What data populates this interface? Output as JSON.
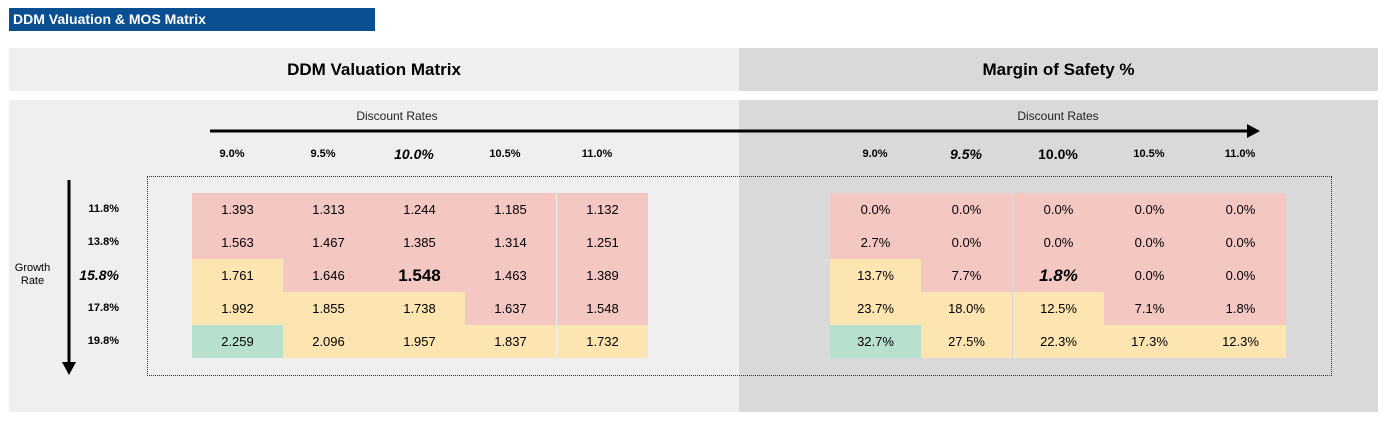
{
  "banner": {
    "title": "DDM Valuation & MOS Matrix"
  },
  "valuation": {
    "title": "DDM Valuation Matrix",
    "axis_label": "Discount Rates",
    "columns": [
      "9.0%",
      "9.5%",
      "10.0%",
      "10.5%",
      "11.0%"
    ],
    "rows": [
      [
        "1.393",
        "1.313",
        "1.244",
        "1.185",
        "1.132"
      ],
      [
        "1.563",
        "1.467",
        "1.385",
        "1.314",
        "1.251"
      ],
      [
        "1.761",
        "1.646",
        "1.548",
        "1.463",
        "1.389"
      ],
      [
        "1.992",
        "1.855",
        "1.738",
        "1.637",
        "1.548"
      ],
      [
        "2.259",
        "2.096",
        "1.957",
        "1.837",
        "1.732"
      ]
    ],
    "colors": [
      [
        "red",
        "red",
        "red",
        "red",
        "red"
      ],
      [
        "red",
        "red",
        "red",
        "red",
        "red"
      ],
      [
        "yellow",
        "red",
        "red",
        "red",
        "red"
      ],
      [
        "yellow",
        "yellow",
        "yellow",
        "red",
        "red"
      ],
      [
        "green",
        "yellow",
        "yellow",
        "yellow",
        "yellow"
      ]
    ]
  },
  "mos": {
    "title": "Margin of Safety %",
    "axis_label": "Discount Rates",
    "columns": [
      "9.0%",
      "9.5%",
      "10.0%",
      "10.5%",
      "11.0%"
    ],
    "rows": [
      [
        "0.0%",
        "0.0%",
        "0.0%",
        "0.0%",
        "0.0%"
      ],
      [
        "2.7%",
        "0.0%",
        "0.0%",
        "0.0%",
        "0.0%"
      ],
      [
        "13.7%",
        "7.7%",
        "1.8%",
        "0.0%",
        "0.0%"
      ],
      [
        "23.7%",
        "18.0%",
        "12.5%",
        "7.1%",
        "1.8%"
      ],
      [
        "32.7%",
        "27.5%",
        "22.3%",
        "17.3%",
        "12.3%"
      ]
    ],
    "colors": [
      [
        "red",
        "red",
        "red",
        "red",
        "red"
      ],
      [
        "red",
        "red",
        "red",
        "red",
        "red"
      ],
      [
        "yellow",
        "red",
        "red",
        "red",
        "red"
      ],
      [
        "yellow",
        "yellow",
        "yellow",
        "red",
        "red"
      ],
      [
        "green",
        "yellow",
        "yellow",
        "yellow",
        "yellow"
      ]
    ]
  },
  "growth": {
    "label_line1": "Growth",
    "label_line2": "Rate",
    "rows": [
      "11.8%",
      "13.8%",
      "15.8%",
      "17.8%",
      "19.8%"
    ]
  },
  "palette": {
    "red": "#f4c7c3",
    "yellow": "#fce5b0",
    "green": "#b8e0cf",
    "banner": "#0b4f93"
  }
}
